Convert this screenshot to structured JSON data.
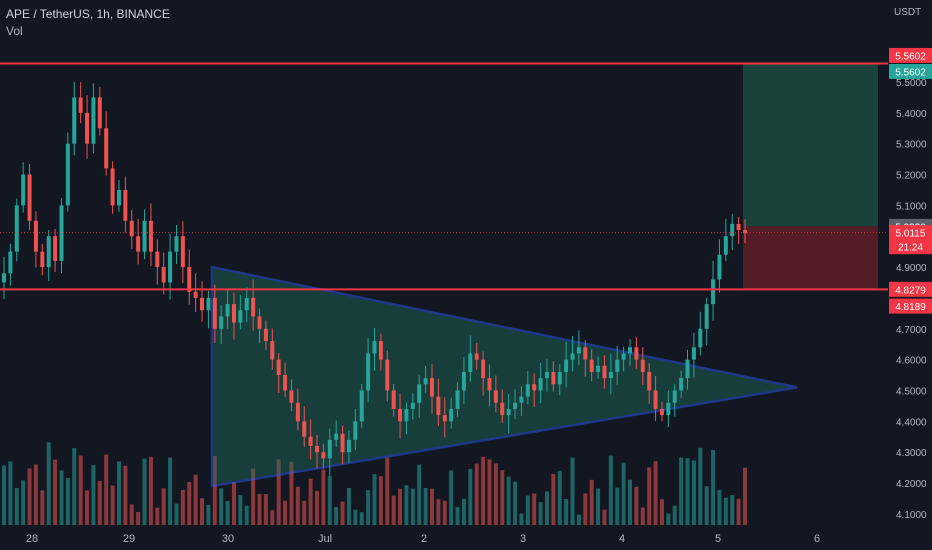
{
  "header": {
    "symbol_line": "APE / TetherUS, 1h, BINANCE",
    "volume_label": "Vol",
    "price_unit": "USDT"
  },
  "colors": {
    "background": "#131722",
    "up": "#26a69a",
    "down": "#ef5350",
    "level": "#f23645",
    "triangle": "#2962ff",
    "triangle_fill": "#1e6e5a",
    "target_zone": "#1b4a41",
    "stop_zone": "#5c1e27",
    "axis_text": "#b2b5be"
  },
  "chart_data": {
    "type": "candlestick",
    "x_tick_labels": [
      "28",
      "29",
      "30",
      "Jul",
      "2",
      "3",
      "4",
      "5",
      "6"
    ],
    "y_tick_labels": [
      "5.5000",
      "5.4000",
      "5.3000",
      "5.2000",
      "5.1000",
      "4.9000",
      "4.7000",
      "4.6000",
      "4.5000",
      "4.4000",
      "4.3000",
      "4.2000",
      "4.1000"
    ],
    "ylim": [
      4.08,
      5.62
    ],
    "price_tags": [
      {
        "text": "5.5602",
        "color": "#f23645"
      },
      {
        "text": "5.5602",
        "color": "#26a69a"
      },
      {
        "text": "5.0320",
        "color": "#5d606b"
      },
      {
        "text": "5.0115",
        "color": "#f23645"
      },
      {
        "text": "21:24",
        "color": "#f23645"
      },
      {
        "text": "4.8279",
        "color": "#f23645"
      },
      {
        "text": "4.8189",
        "color": "#f23645"
      }
    ],
    "horizontal_levels": [
      5.5602,
      4.8279
    ],
    "last_price": 5.0115,
    "triangle": {
      "upper_start": {
        "x": 29.82,
        "y": 4.9
      },
      "upper_end": {
        "x": 5.75,
        "y": 4.51
      },
      "lower_start": {
        "x": 29.82,
        "y": 4.19
      },
      "apex_date_note": "",
      "apex_x": 5.75
    },
    "closes": [
      4.88,
      4.95,
      5.1,
      5.2,
      5.05,
      4.95,
      4.9,
      5.0,
      4.92,
      5.1,
      5.3,
      5.45,
      5.4,
      5.3,
      5.45,
      5.35,
      5.22,
      5.1,
      5.15,
      5.05,
      5.0,
      4.95,
      5.05,
      4.95,
      4.9,
      4.85,
      4.95,
      5.0,
      4.9,
      4.82,
      4.8,
      4.76,
      4.8,
      4.7,
      4.74,
      4.78,
      4.72,
      4.76,
      4.8,
      4.74,
      4.7,
      4.66,
      4.6,
      4.55,
      4.5,
      4.46,
      4.4,
      4.35,
      4.32,
      4.3,
      4.28,
      4.34,
      4.36,
      4.3,
      4.34,
      4.4,
      4.5,
      4.62,
      4.66,
      4.6,
      4.5,
      4.44,
      4.4,
      4.44,
      4.46,
      4.52,
      4.54,
      4.48,
      4.42,
      4.4,
      4.44,
      4.5,
      4.56,
      4.62,
      4.6,
      4.54,
      4.5,
      4.46,
      4.42,
      4.44,
      4.46,
      4.48,
      4.52,
      4.5,
      4.54,
      4.56,
      4.52,
      4.56,
      4.6,
      4.62,
      4.64,
      4.6,
      4.56,
      4.58,
      4.54,
      4.56,
      4.6,
      4.62,
      4.64,
      4.6,
      4.56,
      4.5,
      4.44,
      4.42,
      4.46,
      4.5,
      4.54,
      4.6,
      4.64,
      4.7,
      4.78,
      4.86,
      4.94,
      5.0,
      5.04,
      5.02,
      5.01
    ],
    "volume_range": [
      0,
      100
    ]
  }
}
